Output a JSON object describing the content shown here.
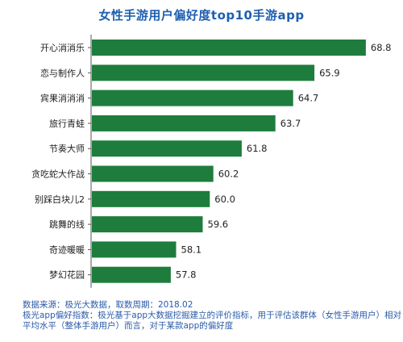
{
  "chart_data": {
    "type": "bar",
    "orientation": "horizontal",
    "title": "女性手游用户偏好度top10手游app",
    "categories": [
      "开心消消乐",
      "恋与制作人",
      "宾果消消消",
      "旅行青蛙",
      "节奏大师",
      "贪吃蛇大作战",
      "别踩白块儿2",
      "跳舞的线",
      "奇迹暖暖",
      "梦幻花园"
    ],
    "values": [
      68.8,
      65.9,
      64.7,
      63.7,
      61.8,
      60.2,
      60.0,
      59.6,
      58.1,
      57.8
    ],
    "value_labels": [
      "68.8",
      "65.9",
      "64.7",
      "63.7",
      "61.8",
      "60.2",
      "60.0",
      "59.6",
      "58.1",
      "57.8"
    ],
    "xlabel": "",
    "ylabel": "",
    "grid": false,
    "legend": "none",
    "bar_color": "#1e7d3c"
  },
  "footer": {
    "line1": "数据来源：极光大数据，取数周期：2018.02",
    "line2": "极光app偏好指数：极光基于app大数据挖掘建立的评价指标，用于评估该群体（女性手游用户）相对",
    "line3": "平均水平（整体手游用户）而言，对于某款app的偏好度"
  }
}
